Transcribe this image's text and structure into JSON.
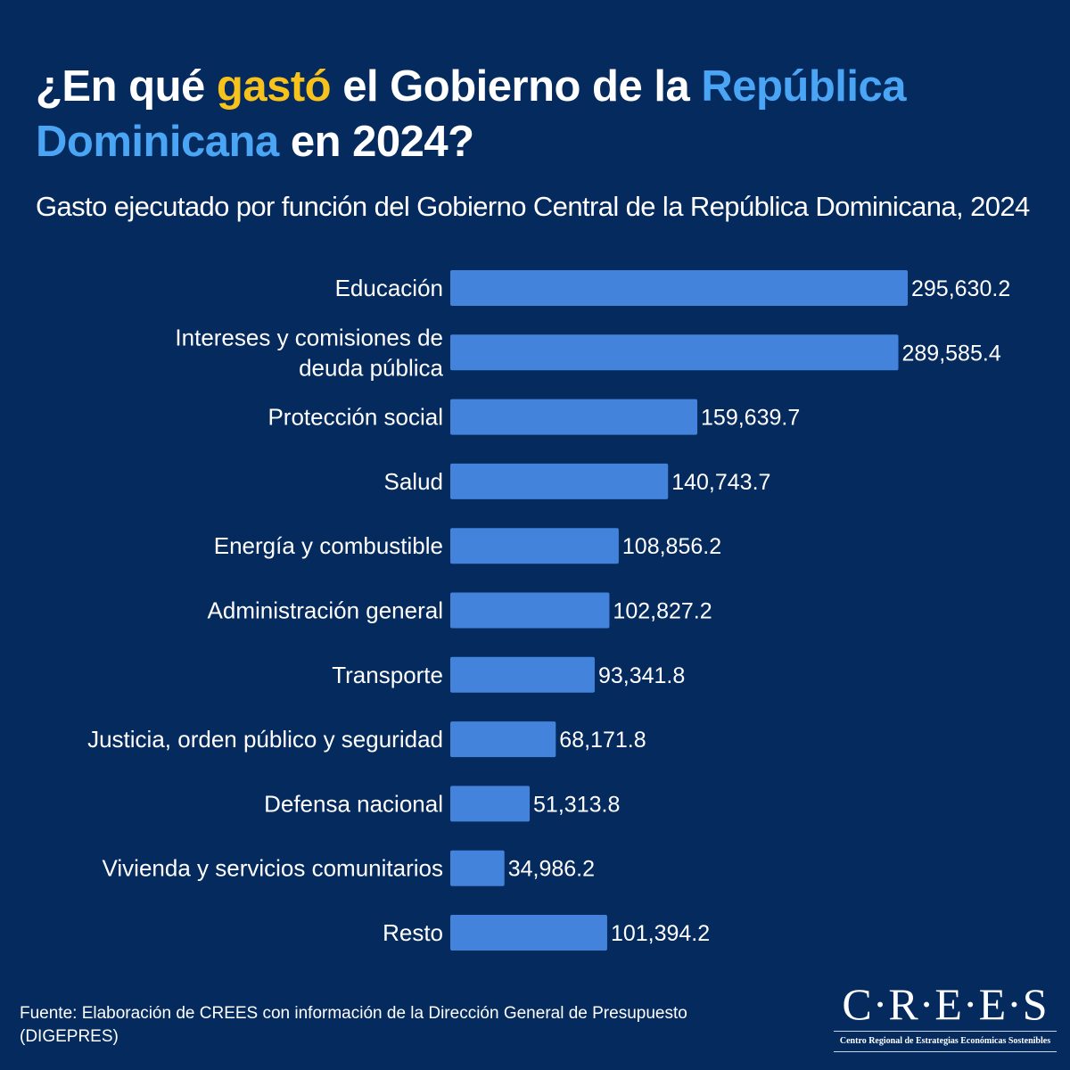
{
  "header": {
    "title_parts": [
      "¿En qué ",
      "gastó",
      " el Gobierno de la ",
      "República Dominicana",
      " en 2024?"
    ],
    "subtitle": "Gasto ejecutado por función del Gobierno Central de la República Dominicana, 2024"
  },
  "colors": {
    "background": "#052a5e",
    "bar": "#4383db",
    "highlight_yellow": "#f7c21b",
    "highlight_blue": "#4aa6f5"
  },
  "chart_data": {
    "type": "bar",
    "orientation": "horizontal",
    "title": "Gasto ejecutado por función del Gobierno Central de la República Dominicana, 2024",
    "categories": [
      [
        "Educación"
      ],
      [
        "Intereses y comisiones de",
        "deuda pública"
      ],
      [
        "Protección social"
      ],
      [
        "Salud"
      ],
      [
        "Energía y combustible"
      ],
      [
        "Administración general"
      ],
      [
        "Transporte"
      ],
      [
        "Justicia, orden público y seguridad"
      ],
      [
        "Defensa nacional"
      ],
      [
        "Vivienda y servicios comunitarios"
      ],
      [
        "Resto"
      ]
    ],
    "values": [
      295630.2,
      289585.4,
      159639.7,
      140743.7,
      108856.2,
      102827.2,
      93341.8,
      68171.8,
      51313.8,
      34986.2,
      101394.2
    ],
    "labels": [
      "295,630.2",
      "289,585.4",
      "159,639.7",
      "140,743.7",
      "108,856.2",
      "102,827.2",
      "93,341.8",
      "68,171.8",
      "51,313.8",
      "34,986.2",
      "101,394.2"
    ],
    "xlabel": "",
    "ylabel": "",
    "xlim": [
      0,
      295630.2
    ],
    "grid": false,
    "legend": "none"
  },
  "footer": {
    "source": "Fuente: Elaboración de CREES con información de la Dirección General de Presupuesto (DIGEPRES)",
    "logo_main": "C·R·E·E·S",
    "logo_sub": "Centro Regional de Estrategias Económicas Sostenibles"
  }
}
